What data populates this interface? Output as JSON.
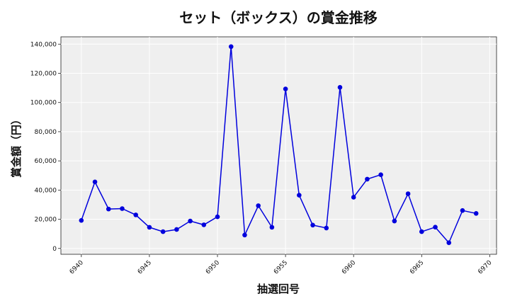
{
  "chart_data": {
    "type": "line",
    "title": "セット（ボックス）の賞金推移",
    "xlabel": "抽選回号",
    "ylabel": "賞金額（円）",
    "x": [
      6940,
      6941,
      6942,
      6943,
      6944,
      6945,
      6946,
      6947,
      6948,
      6949,
      6950,
      6951,
      6952,
      6953,
      6954,
      6955,
      6956,
      6957,
      6958,
      6959,
      6960,
      6961,
      6962,
      6963,
      6964,
      6965,
      6966,
      6967,
      6968,
      6969
    ],
    "series": [
      {
        "values": [
          19200,
          45600,
          27000,
          27300,
          23000,
          14500,
          11500,
          13000,
          18800,
          16200,
          21700,
          138300,
          9200,
          29300,
          14500,
          109300,
          36500,
          16000,
          14000,
          110400,
          35100,
          47500,
          50500,
          18800,
          37500,
          11500,
          14600,
          3900,
          26000,
          24000
        ],
        "color": "#0000dd"
      }
    ],
    "xlim": [
      6938.5,
      6970.5
    ],
    "ylim": [
      -4000,
      145000
    ],
    "xticks": [
      6940,
      6945,
      6950,
      6955,
      6960,
      6965,
      6970
    ],
    "xtick_labels": [
      "6940",
      "6945",
      "6950",
      "6955",
      "6960",
      "6965",
      "6970"
    ],
    "yticks": [
      0,
      20000,
      40000,
      60000,
      80000,
      100000,
      120000,
      140000
    ],
    "ytick_labels": [
      "0",
      "20,000",
      "40,000",
      "60,000",
      "80,000",
      "100,000",
      "120,000",
      "140,000"
    ],
    "grid": true,
    "background": "#efefef"
  }
}
